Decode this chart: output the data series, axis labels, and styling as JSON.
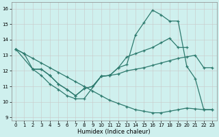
{
  "xlabel": "Humidex (Indice chaleur)",
  "background_color": "#cff0ee",
  "line_color": "#2d7a6e",
  "xlim": [
    -0.5,
    23.5
  ],
  "ylim": [
    8.8,
    16.4
  ],
  "yticks": [
    9,
    10,
    11,
    12,
    13,
    14,
    15,
    16
  ],
  "xticks": [
    0,
    1,
    2,
    3,
    4,
    5,
    6,
    7,
    8,
    9,
    10,
    11,
    12,
    13,
    14,
    15,
    16,
    17,
    18,
    19,
    20,
    21,
    22,
    23
  ],
  "line1_x": [
    0,
    1,
    2,
    3,
    4,
    5,
    6,
    7,
    8,
    10,
    11,
    12,
    13,
    14,
    15,
    16,
    17,
    18,
    19,
    20,
    21,
    22,
    23
  ],
  "line1_y": [
    13.4,
    13.1,
    12.1,
    11.7,
    11.15,
    10.8,
    10.4,
    10.2,
    10.2,
    11.65,
    11.7,
    12.2,
    12.4,
    14.3,
    15.1,
    15.9,
    15.6,
    15.2,
    15.2,
    12.3,
    11.5,
    9.5,
    9.5
  ],
  "line2_x": [
    0,
    2,
    3,
    4,
    5,
    6,
    7,
    8,
    9,
    10,
    11,
    12,
    13,
    14,
    15,
    16,
    17,
    18,
    19,
    20,
    21,
    22,
    23
  ],
  "line2_y": [
    13.4,
    12.1,
    12.1,
    11.7,
    11.15,
    10.8,
    10.4,
    10.85,
    11.0,
    11.65,
    11.7,
    11.8,
    12.0,
    12.1,
    12.2,
    12.35,
    12.5,
    12.65,
    12.8,
    12.9,
    13.0,
    12.2,
    12.2
  ],
  "line3_x": [
    0,
    1,
    2,
    3,
    4,
    5,
    6,
    7,
    8,
    9,
    10,
    11,
    12,
    13,
    14,
    15,
    16,
    17,
    18,
    19,
    20,
    21,
    22,
    23
  ],
  "line3_y": [
    13.4,
    13.1,
    12.8,
    12.5,
    12.2,
    11.9,
    11.6,
    11.3,
    11.0,
    10.7,
    10.4,
    10.1,
    9.9,
    9.7,
    9.5,
    9.4,
    9.3,
    9.3,
    9.4,
    9.5,
    9.6,
    9.55,
    9.5,
    9.5
  ],
  "line4_x": [
    2,
    3,
    4,
    5,
    6,
    7,
    8,
    9,
    10,
    11,
    12,
    13,
    14,
    15,
    16,
    17,
    18,
    19,
    20
  ],
  "line4_y": [
    12.1,
    12.1,
    11.7,
    11.15,
    10.8,
    10.4,
    10.85,
    11.0,
    11.65,
    11.7,
    12.2,
    12.9,
    13.1,
    13.3,
    13.5,
    13.8,
    14.1,
    13.5,
    13.5
  ]
}
